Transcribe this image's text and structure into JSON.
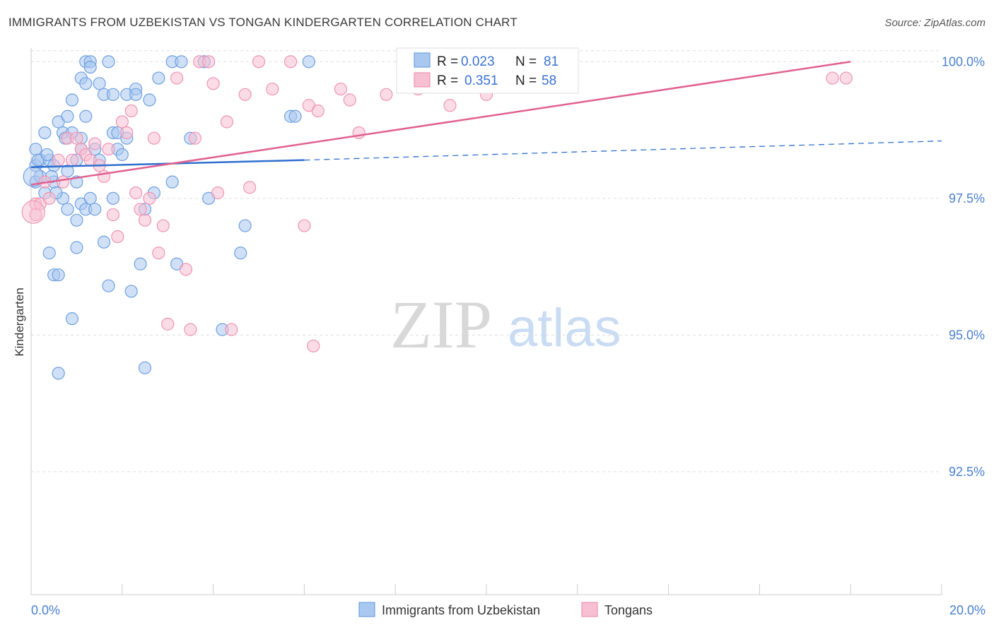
{
  "title": "IMMIGRANTS FROM UZBEKISTAN VS TONGAN KINDERGARTEN CORRELATION CHART",
  "source": "Source: ZipAtlas.com",
  "watermark": {
    "zip": "ZIP",
    "atlas": "atlas"
  },
  "colors": {
    "blue_fill": "#a9c8f0",
    "blue_stroke": "#6fa0e0",
    "blue_line": "#2f6fcf",
    "pink_fill": "#f7bfd2",
    "pink_stroke": "#ee94b4",
    "pink_line": "#e0608f",
    "tick_text": "#4a7fcf",
    "grid": "#dddddd"
  },
  "legend": {
    "rows": [
      {
        "r_label": "R =",
        "r_value": "0.023",
        "n_label": "N =",
        "n_value": "81"
      },
      {
        "r_label": "R =",
        "r_value": "0.351",
        "n_label": "N =",
        "n_value": "58"
      }
    ]
  },
  "chart_data": {
    "type": "scatter",
    "title": "IMMIGRANTS FROM UZBEKISTAN VS TONGAN KINDERGARTEN CORRELATION CHART",
    "xlabel": "",
    "ylabel": "Kindergarten",
    "xlim": [
      0,
      20
    ],
    "ylim": [
      90.25,
      100.25
    ],
    "x_tick_labels": [
      "0.0%",
      "20.0%"
    ],
    "y_ticks": [
      92.5,
      95.0,
      97.5,
      100.0
    ],
    "y_tick_labels": [
      "92.5%",
      "95.0%",
      "97.5%",
      "100.0%"
    ],
    "series": [
      {
        "name": "Immigrants from Uzbekistan",
        "color": "blue",
        "R": 0.023,
        "N": 81,
        "trend": {
          "x0": 0,
          "y0": 98.07,
          "x1": 6.0,
          "y1": 98.2,
          "dash_to_x": 20,
          "dash_to_y": 98.55
        },
        "points": [
          [
            0.1,
            97.8
          ],
          [
            0.1,
            98.1
          ],
          [
            0.1,
            98.4
          ],
          [
            0.2,
            98.2
          ],
          [
            0.2,
            97.9
          ],
          [
            0.3,
            97.6
          ],
          [
            0.3,
            98.7
          ],
          [
            0.4,
            98.2
          ],
          [
            0.4,
            96.5
          ],
          [
            0.5,
            98.1
          ],
          [
            0.5,
            97.8
          ],
          [
            0.5,
            96.1
          ],
          [
            0.6,
            98.9
          ],
          [
            0.6,
            96.1
          ],
          [
            0.6,
            94.3
          ],
          [
            0.7,
            98.7
          ],
          [
            0.7,
            97.5
          ],
          [
            0.8,
            99.0
          ],
          [
            0.8,
            97.3
          ],
          [
            0.8,
            98.0
          ],
          [
            0.9,
            99.3
          ],
          [
            0.9,
            98.7
          ],
          [
            0.9,
            95.3
          ],
          [
            1.0,
            97.1
          ],
          [
            1.0,
            96.6
          ],
          [
            1.0,
            97.8
          ],
          [
            1.0,
            98.2
          ],
          [
            1.1,
            98.6
          ],
          [
            1.1,
            98.4
          ],
          [
            1.1,
            97.4
          ],
          [
            1.1,
            99.7
          ],
          [
            1.2,
            99.6
          ],
          [
            1.2,
            99.0
          ],
          [
            1.2,
            97.3
          ],
          [
            1.2,
            100.0
          ],
          [
            1.3,
            97.5
          ],
          [
            1.3,
            100.0
          ],
          [
            1.3,
            99.9
          ],
          [
            1.4,
            97.3
          ],
          [
            1.4,
            98.4
          ],
          [
            1.5,
            99.6
          ],
          [
            1.5,
            98.2
          ],
          [
            1.6,
            99.4
          ],
          [
            1.6,
            96.7
          ],
          [
            1.7,
            100.0
          ],
          [
            1.7,
            95.9
          ],
          [
            1.8,
            99.4
          ],
          [
            1.8,
            97.5
          ],
          [
            1.8,
            98.7
          ],
          [
            1.9,
            98.4
          ],
          [
            1.9,
            98.7
          ],
          [
            2.1,
            99.4
          ],
          [
            2.1,
            98.6
          ],
          [
            2.2,
            95.8
          ],
          [
            2.3,
            99.5
          ],
          [
            2.3,
            99.4
          ],
          [
            2.4,
            96.3
          ],
          [
            2.5,
            94.4
          ],
          [
            2.5,
            97.3
          ],
          [
            2.6,
            99.3
          ],
          [
            2.7,
            97.6
          ],
          [
            2.8,
            99.7
          ],
          [
            3.1,
            97.8
          ],
          [
            3.1,
            100.0
          ],
          [
            3.2,
            96.3
          ],
          [
            3.3,
            100.0
          ],
          [
            3.5,
            98.6
          ],
          [
            3.8,
            100.0
          ],
          [
            3.9,
            97.5
          ],
          [
            4.2,
            95.1
          ],
          [
            4.6,
            96.5
          ],
          [
            4.7,
            97.0
          ],
          [
            5.7,
            99.0
          ],
          [
            5.8,
            99.0
          ],
          [
            6.1,
            100.0
          ],
          [
            0.15,
            98.2
          ],
          [
            0.35,
            98.3
          ],
          [
            0.45,
            97.9
          ],
          [
            0.55,
            97.6
          ],
          [
            0.75,
            98.6
          ],
          [
            2.0,
            98.3
          ]
        ]
      },
      {
        "name": "Tongans",
        "color": "pink",
        "R": 0.351,
        "N": 58,
        "trend": {
          "x0": 0,
          "y0": 97.75,
          "x1": 18.0,
          "y1": 100.0
        },
        "points": [
          [
            0.1,
            97.4
          ],
          [
            0.1,
            97.2
          ],
          [
            0.2,
            97.4
          ],
          [
            0.3,
            97.8
          ],
          [
            0.4,
            97.5
          ],
          [
            0.6,
            98.2
          ],
          [
            0.7,
            97.8
          ],
          [
            0.8,
            98.6
          ],
          [
            0.9,
            98.2
          ],
          [
            1.0,
            98.6
          ],
          [
            1.1,
            98.4
          ],
          [
            1.2,
            98.3
          ],
          [
            1.3,
            98.2
          ],
          [
            1.4,
            98.5
          ],
          [
            1.5,
            98.1
          ],
          [
            1.6,
            97.9
          ],
          [
            1.7,
            98.4
          ],
          [
            1.8,
            97.2
          ],
          [
            1.9,
            96.8
          ],
          [
            2.0,
            98.9
          ],
          [
            2.1,
            98.7
          ],
          [
            2.2,
            99.1
          ],
          [
            2.3,
            97.6
          ],
          [
            2.4,
            97.3
          ],
          [
            2.5,
            97.1
          ],
          [
            2.6,
            97.5
          ],
          [
            2.7,
            98.6
          ],
          [
            2.8,
            96.5
          ],
          [
            2.9,
            97.0
          ],
          [
            3.0,
            95.2
          ],
          [
            3.2,
            99.7
          ],
          [
            3.4,
            96.2
          ],
          [
            3.5,
            95.1
          ],
          [
            3.6,
            98.6
          ],
          [
            3.7,
            100.0
          ],
          [
            3.9,
            100.0
          ],
          [
            4.0,
            99.6
          ],
          [
            4.1,
            97.6
          ],
          [
            4.3,
            98.9
          ],
          [
            4.4,
            95.1
          ],
          [
            4.7,
            99.4
          ],
          [
            4.8,
            97.7
          ],
          [
            5.0,
            100.0
          ],
          [
            5.3,
            99.5
          ],
          [
            5.7,
            100.0
          ],
          [
            6.0,
            97.0
          ],
          [
            6.1,
            99.2
          ],
          [
            6.2,
            94.8
          ],
          [
            6.3,
            99.1
          ],
          [
            6.8,
            99.5
          ],
          [
            7.0,
            99.3
          ],
          [
            7.2,
            98.7
          ],
          [
            7.8,
            99.4
          ],
          [
            8.5,
            99.5
          ],
          [
            9.2,
            99.2
          ],
          [
            10.0,
            99.4
          ],
          [
            17.6,
            99.7
          ],
          [
            17.9,
            99.7
          ]
        ]
      }
    ]
  }
}
